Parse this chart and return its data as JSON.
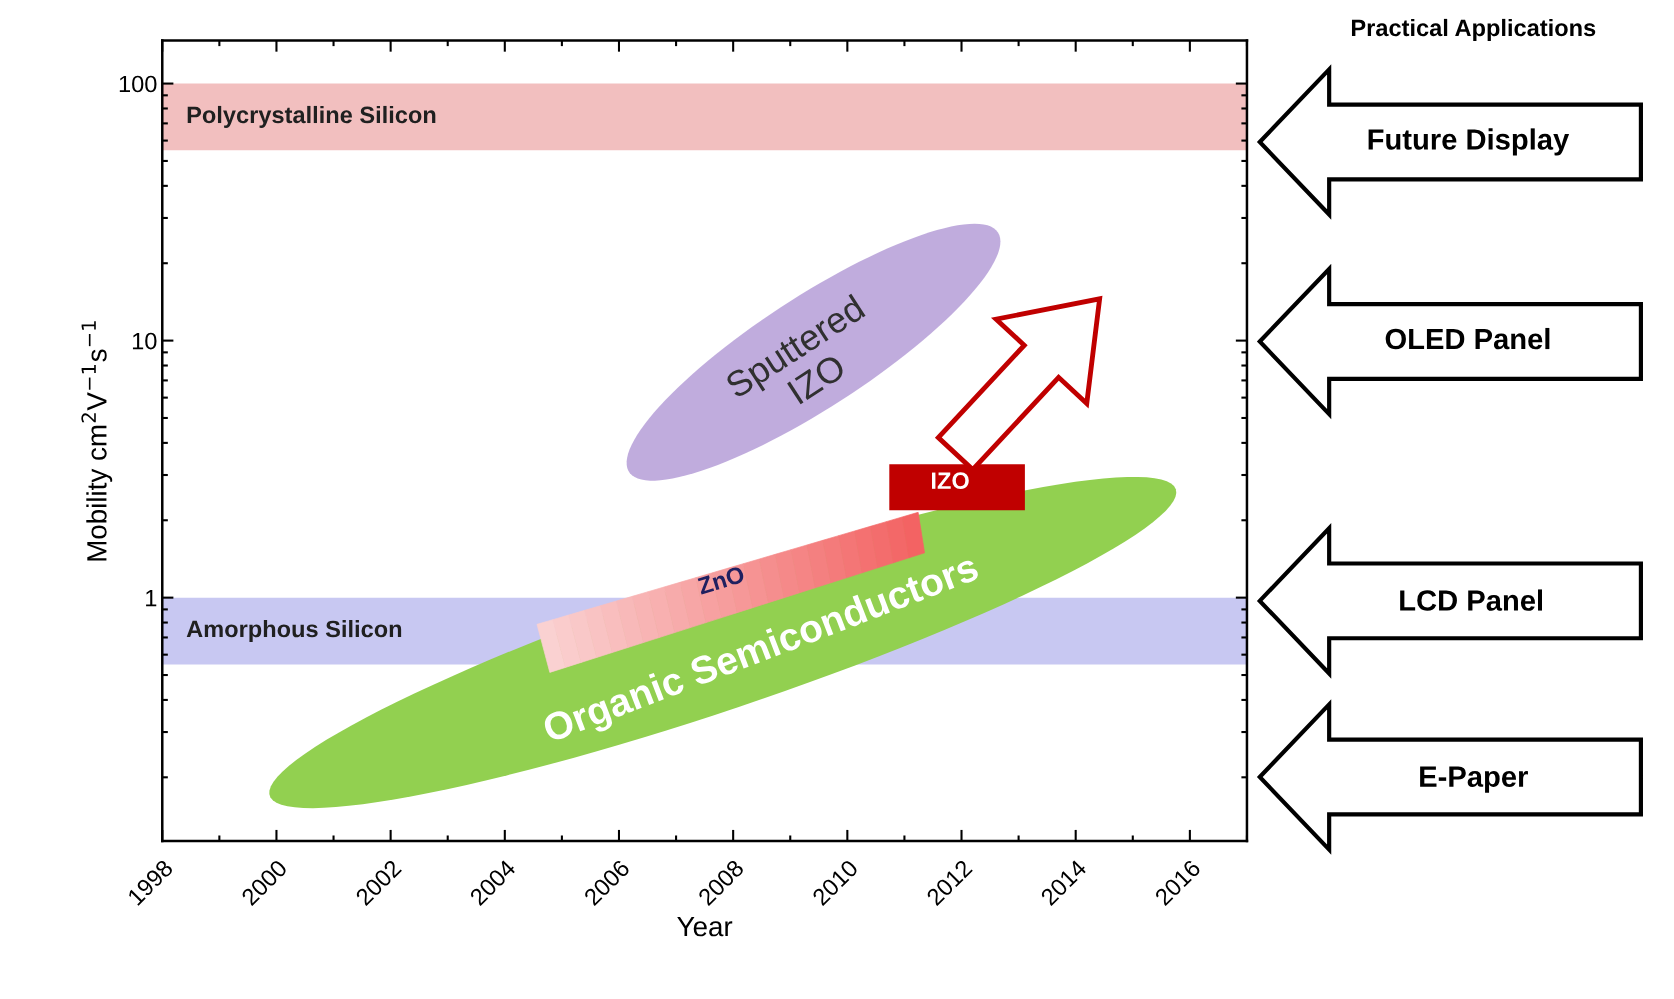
{
  "chart_data": {
    "type": "line",
    "xlabel": "Year",
    "ylabel": "Mobility cm$^{2}$V$^{−1}$s$^{−1}$",
    "log": "y",
    "xlim": [
      1998,
      2017
    ],
    "xticks": [
      1998,
      2000,
      2002,
      2004,
      2006,
      2008,
      2010,
      2012,
      2014,
      2016
    ],
    "ylim": [
      0.113,
      147
    ],
    "yticks": [
      1,
      10,
      100
    ],
    "bands": [
      {
        "axis": "y",
        "from": 55,
        "to": 100,
        "label": "Polycrystalline Silicon",
        "color": "#e88a8a"
      },
      {
        "axis": "y",
        "from": 0.55,
        "to": 1,
        "label": "Amorphous Silicon",
        "color": "#9a9ae8"
      }
    ],
    "annotations": [
      "Sputtered\nIZO",
      "Organic Semiconductors",
      "ZnO",
      "IZO",
      "Practical Applications",
      "Future Display",
      "OLED Panel",
      "LCD Panel",
      "E-Paper"
    ]
  }
}
